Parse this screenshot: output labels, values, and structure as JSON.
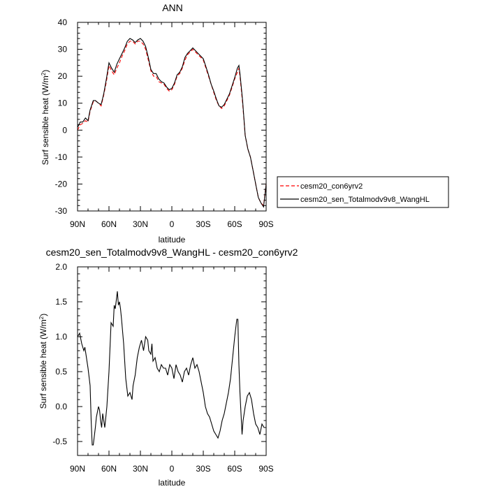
{
  "chart_data": [
    {
      "type": "line",
      "title": "ANN",
      "xlabel": "latitude",
      "ylabel": "Surf sensible heat (W/m²)",
      "ylabel_base": "Surf sensible heat (W/m",
      "ylabel_sup": "2",
      "ylabel_tail": ")",
      "xlim": [
        90,
        -90
      ],
      "ylim": [
        -30,
        40
      ],
      "x_ticks": [
        90,
        60,
        30,
        0,
        -30,
        -60,
        -90
      ],
      "x_tick_labels": [
        "90N",
        "60N",
        "30N",
        "0",
        "30S",
        "60S",
        "90S"
      ],
      "y_ticks": [
        -30,
        -20,
        -10,
        0,
        10,
        20,
        30,
        40
      ],
      "y_tick_labels": [
        "-30",
        "-20",
        "-10",
        "0",
        "10",
        "20",
        "30",
        "40"
      ],
      "legend_position": "right",
      "series": [
        {
          "name": "cesm20_con6yrv2",
          "color": "#ff0000",
          "dash": "dashed",
          "x": [
            90,
            87.5,
            85,
            82.5,
            80,
            78,
            75,
            73,
            70,
            67.5,
            65,
            62.5,
            60,
            57.5,
            55,
            52.5,
            50,
            47.5,
            45,
            42.5,
            40,
            37.5,
            35,
            32.5,
            30,
            27.5,
            25,
            22.5,
            20,
            17.5,
            15,
            12.5,
            10,
            7.5,
            5,
            2.5,
            0,
            -2.5,
            -5,
            -7.5,
            -10,
            -12.5,
            -15,
            -17.5,
            -20,
            -22.5,
            -25,
            -27.5,
            -30,
            -32.5,
            -35,
            -37.5,
            -40,
            -42.5,
            -45,
            -47.5,
            -50,
            -52.5,
            -55,
            -57.5,
            -60,
            -62.5,
            -64,
            -65,
            -67.5,
            -70,
            -72.5,
            -75,
            -77.5,
            -80,
            -82.5,
            -85,
            -87.5,
            -90
          ],
          "y": [
            0,
            2,
            2.5,
            3.5,
            3,
            7,
            10.5,
            11,
            10,
            9,
            13,
            18,
            24,
            22,
            20.5,
            23,
            25,
            27.5,
            29.5,
            32,
            33,
            33,
            32,
            33,
            33,
            32,
            30,
            26,
            22,
            20,
            20,
            18,
            17.5,
            17,
            15.5,
            14.5,
            15,
            17,
            20,
            21,
            23,
            26,
            28,
            29,
            30,
            29,
            28,
            27,
            26,
            23,
            20,
            17,
            14,
            11,
            9,
            8,
            9,
            11,
            13,
            16,
            19,
            21.5,
            23,
            20,
            10,
            -2,
            -7,
            -10,
            -15,
            -20,
            -25,
            -27,
            -28,
            -20
          ]
        },
        {
          "name": "cesm20_sen_Totalmodv9v8_WangHL",
          "color": "#000000",
          "dash": "solid",
          "x": [
            90,
            87.5,
            85,
            82.5,
            80,
            78,
            75,
            73,
            70,
            67.5,
            65,
            62.5,
            60,
            57.5,
            55,
            52.5,
            50,
            47.5,
            45,
            42.5,
            40,
            37.5,
            35,
            32.5,
            30,
            27.5,
            25,
            22.5,
            20,
            17.5,
            15,
            12.5,
            10,
            7.5,
            5,
            2.5,
            0,
            -2.5,
            -5,
            -7.5,
            -10,
            -12.5,
            -15,
            -17.5,
            -20,
            -22.5,
            -25,
            -27.5,
            -30,
            -32.5,
            -35,
            -37.5,
            -40,
            -42.5,
            -45,
            -47.5,
            -50,
            -52.5,
            -55,
            -57.5,
            -60,
            -62.5,
            -64,
            -65,
            -67.5,
            -70,
            -72.5,
            -75,
            -77.5,
            -80,
            -82.5,
            -85,
            -87.5,
            -90
          ],
          "y": [
            1,
            3,
            3,
            4.5,
            3.5,
            7.5,
            11,
            11,
            10,
            9.5,
            13.5,
            19,
            25,
            23,
            21.5,
            24.5,
            26.5,
            28.5,
            30.5,
            33,
            34,
            33.5,
            32.5,
            33.5,
            34,
            33,
            31,
            27,
            22.5,
            21,
            21,
            19,
            18,
            17.5,
            16,
            15,
            15.5,
            17.5,
            20.5,
            21.5,
            23.5,
            27,
            28.5,
            29.5,
            30.5,
            29.5,
            28.5,
            27.5,
            26.5,
            23.5,
            20.5,
            17,
            14.5,
            11.5,
            9,
            8.5,
            9.5,
            11.5,
            13.5,
            16.5,
            19.5,
            23,
            24,
            21,
            11,
            -2,
            -7,
            -10,
            -15,
            -20,
            -25,
            -27,
            -28.5,
            -20
          ]
        }
      ]
    },
    {
      "type": "line",
      "title": "cesm20_sen_Totalmodv9v8_WangHL - cesm20_con6yrv2",
      "xlabel": "latitude",
      "ylabel": "Surf sensible heat (W/m²)",
      "ylabel_base": "Surf sensible heat (W/m",
      "ylabel_sup": "2",
      "ylabel_tail": ")",
      "xlim": [
        90,
        -90
      ],
      "ylim": [
        -0.7,
        2.0
      ],
      "x_ticks": [
        90,
        60,
        30,
        0,
        -30,
        -60,
        -90
      ],
      "x_tick_labels": [
        "90N",
        "60N",
        "30N",
        "0",
        "30S",
        "60S",
        "90S"
      ],
      "y_ticks": [
        -0.5,
        0,
        0.5,
        1.0,
        1.5,
        2.0
      ],
      "y_tick_labels": [
        "-0.5",
        "0.0",
        "0.5",
        "1.0",
        "1.5",
        "2.0"
      ],
      "series": [
        {
          "color": "#000000",
          "dash": "solid",
          "x": [
            90,
            88,
            86,
            84,
            83,
            82,
            80,
            78,
            77,
            76,
            75,
            73,
            72,
            70,
            69,
            68,
            67,
            66,
            64,
            62,
            60,
            58,
            56,
            55,
            54,
            52,
            51,
            50,
            49,
            48,
            46,
            44,
            42,
            40,
            38,
            37,
            35,
            33,
            31,
            29,
            27,
            25,
            23,
            22,
            20,
            19,
            18,
            16,
            14,
            12,
            10,
            8,
            6,
            4,
            2,
            0,
            -2,
            -4,
            -6,
            -8,
            -10,
            -12,
            -14,
            -16,
            -18,
            -20,
            -22,
            -24,
            -26,
            -28,
            -30,
            -32,
            -34,
            -36,
            -38,
            -40,
            -42,
            -44,
            -46,
            -48,
            -50,
            -52,
            -54,
            -56,
            -58,
            -60,
            -62,
            -63,
            -64,
            -65,
            -66,
            -67,
            -68,
            -70,
            -72,
            -74,
            -76,
            -78,
            -80,
            -82,
            -84,
            -86,
            -88,
            -90
          ],
          "y": [
            1.0,
            1.05,
            0.9,
            0.8,
            0.85,
            0.75,
            0.55,
            0.3,
            -0.2,
            -0.55,
            -0.55,
            -0.3,
            -0.15,
            0.0,
            -0.05,
            -0.2,
            -0.3,
            -0.1,
            -0.3,
            0.0,
            0.5,
            1.2,
            1.15,
            1.45,
            1.4,
            1.65,
            1.45,
            1.5,
            1.4,
            1.25,
            0.9,
            0.4,
            0.15,
            0.2,
            0.1,
            0.3,
            0.45,
            0.7,
            0.85,
            0.95,
            0.8,
            1.0,
            0.95,
            0.8,
            0.75,
            0.9,
            0.65,
            0.7,
            0.55,
            0.5,
            0.6,
            0.55,
            0.55,
            0.45,
            0.6,
            0.55,
            0.4,
            0.6,
            0.5,
            0.45,
            0.35,
            0.5,
            0.55,
            0.45,
            0.6,
            0.7,
            0.55,
            0.6,
            0.5,
            0.35,
            0.2,
            0.0,
            -0.1,
            -0.15,
            -0.25,
            -0.35,
            -0.4,
            -0.45,
            -0.35,
            -0.2,
            -0.1,
            0.05,
            0.2,
            0.4,
            0.7,
            1.0,
            1.25,
            1.25,
            0.6,
            0.2,
            -0.1,
            -0.4,
            -0.2,
            0.0,
            0.15,
            0.2,
            0.1,
            -0.1,
            -0.25,
            -0.3,
            -0.4,
            -0.25,
            -0.3,
            -0.3
          ]
        }
      ]
    }
  ]
}
